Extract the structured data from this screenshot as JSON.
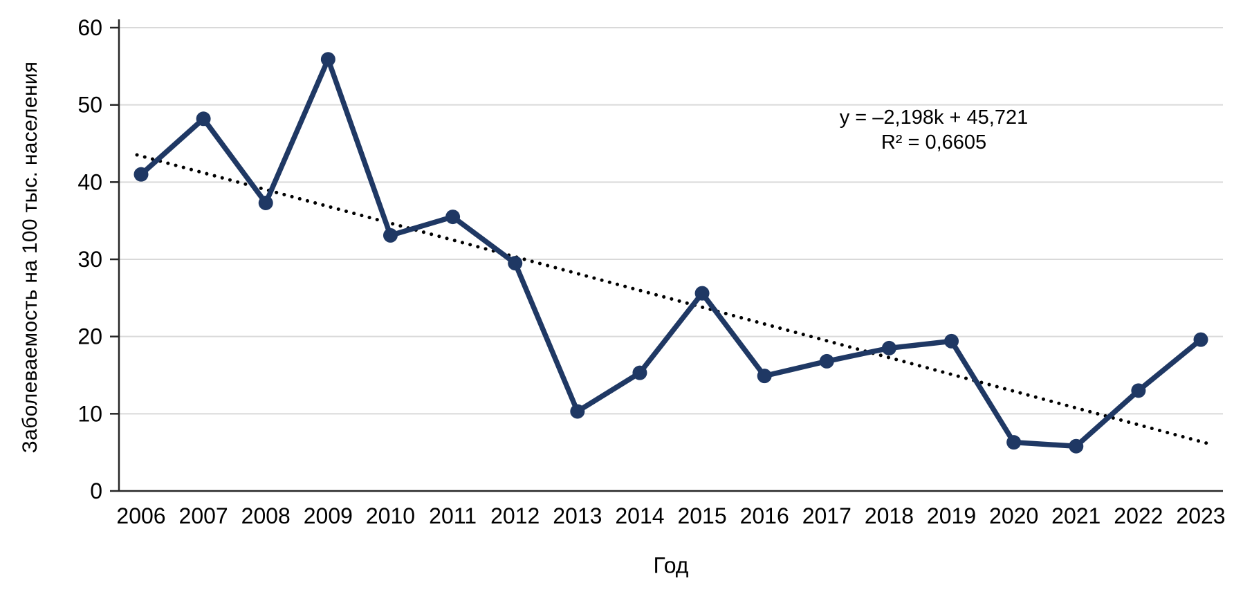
{
  "chart_data": {
    "type": "line",
    "title": "",
    "xlabel": "Год",
    "ylabel": "Заболеваемость на 100 тыс. населения",
    "x": [
      "2006",
      "2007",
      "2008",
      "2009",
      "2010",
      "2011",
      "2012",
      "2013",
      "2014",
      "2015",
      "2016",
      "2017",
      "2018",
      "2019",
      "2020",
      "2021",
      "2022",
      "2023"
    ],
    "series": [
      {
        "name": "Заболеваемость на 100 тыс. населения",
        "values": [
          41.0,
          48.2,
          37.3,
          55.9,
          33.1,
          35.5,
          29.5,
          10.3,
          15.3,
          25.6,
          14.9,
          16.8,
          18.5,
          19.4,
          6.3,
          5.8,
          13.0,
          19.6
        ]
      }
    ],
    "ylim": [
      0,
      60
    ],
    "yticks": [
      0,
      10,
      20,
      30,
      40,
      50,
      60
    ],
    "grid": true,
    "legend": "none",
    "trendline": {
      "type": "linear",
      "slope": -2.198,
      "intercept": 45.721,
      "equation_label": "y = –2,198k + 45,721",
      "r2_label": "R² = 0,6605"
    },
    "colors": {
      "series": "#1f3864",
      "trend": "#000000",
      "grid": "#d9d9d9",
      "axis": "#262626",
      "text": "#000000",
      "background": "#ffffff"
    }
  }
}
